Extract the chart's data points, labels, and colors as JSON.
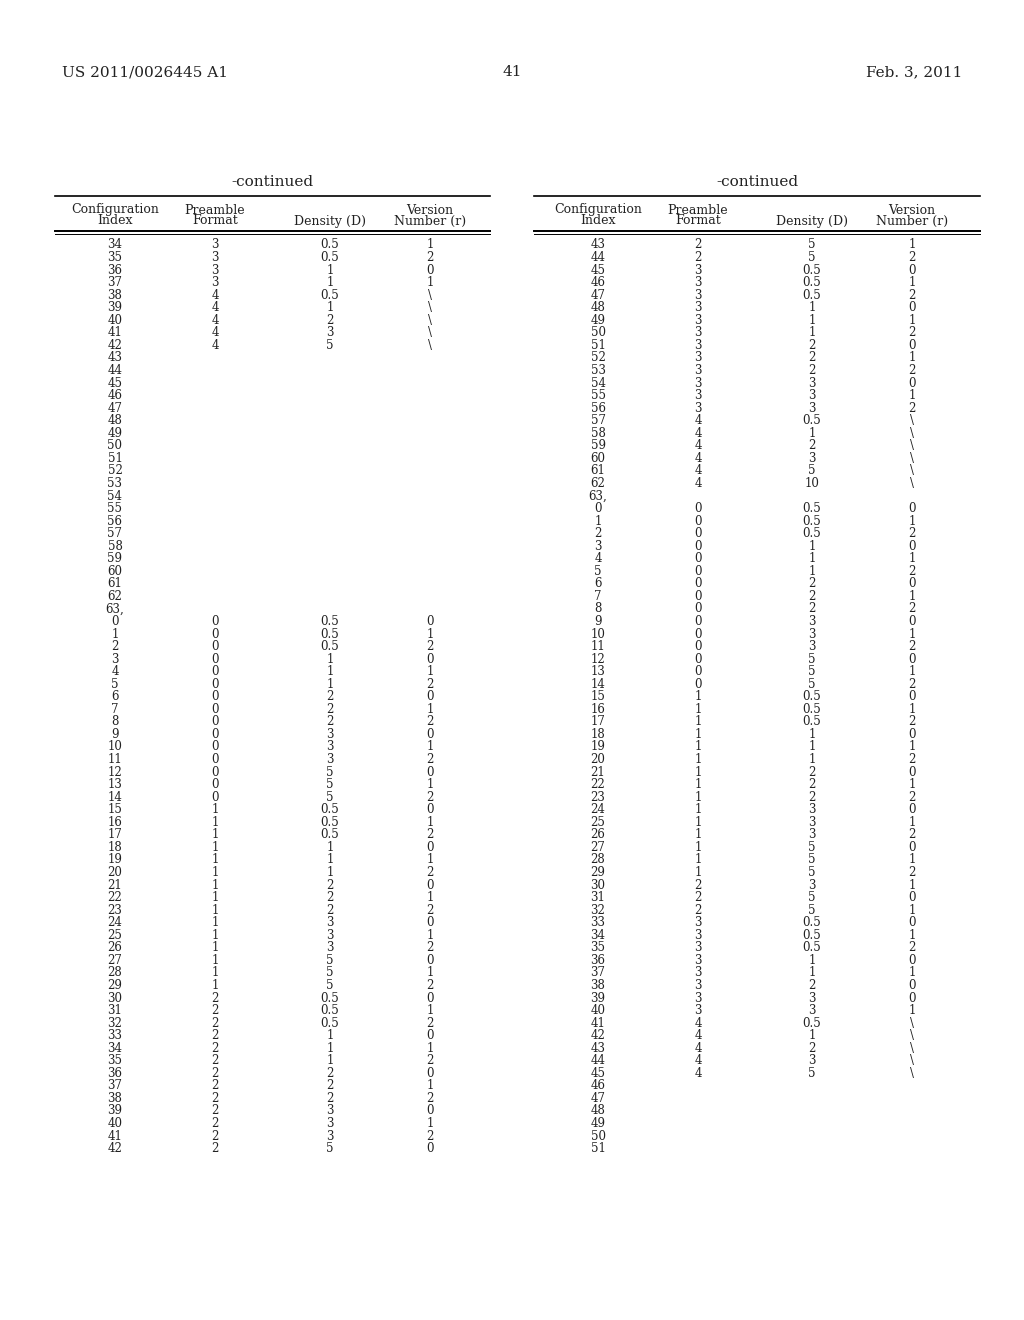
{
  "page_number": "41",
  "patent_number": "US 2011/0026445 A1",
  "date": "Feb. 3, 2011",
  "continued_label": "-continued",
  "col_headers_line1": [
    "Configuration",
    "Preamble",
    "",
    "Version"
  ],
  "col_headers_line2": [
    "Index",
    "Format",
    "Density (D)",
    "Number (r)"
  ],
  "left_table": [
    [
      "34",
      "3",
      "0.5",
      "1"
    ],
    [
      "35",
      "3",
      "0.5",
      "2"
    ],
    [
      "36",
      "3",
      "1",
      "0"
    ],
    [
      "37",
      "3",
      "1",
      "1"
    ],
    [
      "38",
      "4",
      "0.5",
      "\\"
    ],
    [
      "39",
      "4",
      "1",
      "\\"
    ],
    [
      "40",
      "4",
      "2",
      "\\"
    ],
    [
      "41",
      "4",
      "3",
      "\\"
    ],
    [
      "42",
      "4",
      "5",
      "\\"
    ],
    [
      "43",
      "",
      "",
      ""
    ],
    [
      "44",
      "",
      "",
      ""
    ],
    [
      "45",
      "",
      "",
      ""
    ],
    [
      "46",
      "",
      "",
      ""
    ],
    [
      "47",
      "",
      "",
      ""
    ],
    [
      "48",
      "",
      "",
      ""
    ],
    [
      "49",
      "",
      "",
      ""
    ],
    [
      "50",
      "",
      "",
      ""
    ],
    [
      "51",
      "",
      "",
      ""
    ],
    [
      "52",
      "",
      "",
      ""
    ],
    [
      "53",
      "",
      "",
      ""
    ],
    [
      "54",
      "",
      "",
      ""
    ],
    [
      "55",
      "",
      "",
      ""
    ],
    [
      "56",
      "",
      "",
      ""
    ],
    [
      "57",
      "",
      "",
      ""
    ],
    [
      "58",
      "",
      "",
      ""
    ],
    [
      "59",
      "",
      "",
      ""
    ],
    [
      "60",
      "",
      "",
      ""
    ],
    [
      "61",
      "",
      "",
      ""
    ],
    [
      "62",
      "",
      "",
      ""
    ],
    [
      "63,",
      "",
      "",
      ""
    ],
    [
      "0",
      "0",
      "0.5",
      "0"
    ],
    [
      "1",
      "0",
      "0.5",
      "1"
    ],
    [
      "2",
      "0",
      "0.5",
      "2"
    ],
    [
      "3",
      "0",
      "1",
      "0"
    ],
    [
      "4",
      "0",
      "1",
      "1"
    ],
    [
      "5",
      "0",
      "1",
      "2"
    ],
    [
      "6",
      "0",
      "2",
      "0"
    ],
    [
      "7",
      "0",
      "2",
      "1"
    ],
    [
      "8",
      "0",
      "2",
      "2"
    ],
    [
      "9",
      "0",
      "3",
      "0"
    ],
    [
      "10",
      "0",
      "3",
      "1"
    ],
    [
      "11",
      "0",
      "3",
      "2"
    ],
    [
      "12",
      "0",
      "5",
      "0"
    ],
    [
      "13",
      "0",
      "5",
      "1"
    ],
    [
      "14",
      "0",
      "5",
      "2"
    ],
    [
      "15",
      "1",
      "0.5",
      "0"
    ],
    [
      "16",
      "1",
      "0.5",
      "1"
    ],
    [
      "17",
      "1",
      "0.5",
      "2"
    ],
    [
      "18",
      "1",
      "1",
      "0"
    ],
    [
      "19",
      "1",
      "1",
      "1"
    ],
    [
      "20",
      "1",
      "1",
      "2"
    ],
    [
      "21",
      "1",
      "2",
      "0"
    ],
    [
      "22",
      "1",
      "2",
      "1"
    ],
    [
      "23",
      "1",
      "2",
      "2"
    ],
    [
      "24",
      "1",
      "3",
      "0"
    ],
    [
      "25",
      "1",
      "3",
      "1"
    ],
    [
      "26",
      "1",
      "3",
      "2"
    ],
    [
      "27",
      "1",
      "5",
      "0"
    ],
    [
      "28",
      "1",
      "5",
      "1"
    ],
    [
      "29",
      "1",
      "5",
      "2"
    ],
    [
      "30",
      "2",
      "0.5",
      "0"
    ],
    [
      "31",
      "2",
      "0.5",
      "1"
    ],
    [
      "32",
      "2",
      "0.5",
      "2"
    ],
    [
      "33",
      "2",
      "1",
      "0"
    ],
    [
      "34",
      "2",
      "1",
      "1"
    ],
    [
      "35",
      "2",
      "1",
      "2"
    ],
    [
      "36",
      "2",
      "2",
      "0"
    ],
    [
      "37",
      "2",
      "2",
      "1"
    ],
    [
      "38",
      "2",
      "2",
      "2"
    ],
    [
      "39",
      "2",
      "3",
      "0"
    ],
    [
      "40",
      "2",
      "3",
      "1"
    ],
    [
      "41",
      "2",
      "3",
      "2"
    ],
    [
      "42",
      "2",
      "5",
      "0"
    ]
  ],
  "right_table": [
    [
      "43",
      "2",
      "5",
      "1"
    ],
    [
      "44",
      "2",
      "5",
      "2"
    ],
    [
      "45",
      "3",
      "0.5",
      "0"
    ],
    [
      "46",
      "3",
      "0.5",
      "1"
    ],
    [
      "47",
      "3",
      "0.5",
      "2"
    ],
    [
      "48",
      "3",
      "1",
      "0"
    ],
    [
      "49",
      "3",
      "1",
      "1"
    ],
    [
      "50",
      "3",
      "1",
      "2"
    ],
    [
      "51",
      "3",
      "2",
      "0"
    ],
    [
      "52",
      "3",
      "2",
      "1"
    ],
    [
      "53",
      "3",
      "2",
      "2"
    ],
    [
      "54",
      "3",
      "3",
      "0"
    ],
    [
      "55",
      "3",
      "3",
      "1"
    ],
    [
      "56",
      "3",
      "3",
      "2"
    ],
    [
      "57",
      "4",
      "0.5",
      "\\"
    ],
    [
      "58",
      "4",
      "1",
      "\\"
    ],
    [
      "59",
      "4",
      "2",
      "\\"
    ],
    [
      "60",
      "4",
      "3",
      "\\"
    ],
    [
      "61",
      "4",
      "5",
      "\\"
    ],
    [
      "62",
      "4",
      "10",
      "\\"
    ],
    [
      "63,",
      "",
      "",
      ""
    ],
    [
      "0",
      "0",
      "0.5",
      "0"
    ],
    [
      "1",
      "0",
      "0.5",
      "1"
    ],
    [
      "2",
      "0",
      "0.5",
      "2"
    ],
    [
      "3",
      "0",
      "1",
      "0"
    ],
    [
      "4",
      "0",
      "1",
      "1"
    ],
    [
      "5",
      "0",
      "1",
      "2"
    ],
    [
      "6",
      "0",
      "2",
      "0"
    ],
    [
      "7",
      "0",
      "2",
      "1"
    ],
    [
      "8",
      "0",
      "2",
      "2"
    ],
    [
      "9",
      "0",
      "3",
      "0"
    ],
    [
      "10",
      "0",
      "3",
      "1"
    ],
    [
      "11",
      "0",
      "3",
      "2"
    ],
    [
      "12",
      "0",
      "5",
      "0"
    ],
    [
      "13",
      "0",
      "5",
      "1"
    ],
    [
      "14",
      "0",
      "5",
      "2"
    ],
    [
      "15",
      "1",
      "0.5",
      "0"
    ],
    [
      "16",
      "1",
      "0.5",
      "1"
    ],
    [
      "17",
      "1",
      "0.5",
      "2"
    ],
    [
      "18",
      "1",
      "1",
      "0"
    ],
    [
      "19",
      "1",
      "1",
      "1"
    ],
    [
      "20",
      "1",
      "1",
      "2"
    ],
    [
      "21",
      "1",
      "2",
      "0"
    ],
    [
      "22",
      "1",
      "2",
      "1"
    ],
    [
      "23",
      "1",
      "2",
      "2"
    ],
    [
      "24",
      "1",
      "3",
      "0"
    ],
    [
      "25",
      "1",
      "3",
      "1"
    ],
    [
      "26",
      "1",
      "3",
      "2"
    ],
    [
      "27",
      "1",
      "5",
      "0"
    ],
    [
      "28",
      "1",
      "5",
      "1"
    ],
    [
      "29",
      "1",
      "5",
      "2"
    ],
    [
      "30",
      "2",
      "3",
      "1"
    ],
    [
      "31",
      "2",
      "5",
      "0"
    ],
    [
      "32",
      "2",
      "5",
      "1"
    ],
    [
      "33",
      "3",
      "0.5",
      "0"
    ],
    [
      "34",
      "3",
      "0.5",
      "1"
    ],
    [
      "35",
      "3",
      "0.5",
      "2"
    ],
    [
      "36",
      "3",
      "1",
      "0"
    ],
    [
      "37",
      "3",
      "1",
      "1"
    ],
    [
      "38",
      "3",
      "2",
      "0"
    ],
    [
      "39",
      "3",
      "3",
      "0"
    ],
    [
      "40",
      "3",
      "3",
      "1"
    ],
    [
      "41",
      "4",
      "0.5",
      "\\"
    ],
    [
      "42",
      "4",
      "1",
      "\\"
    ],
    [
      "43",
      "4",
      "2",
      "\\"
    ],
    [
      "44",
      "4",
      "3",
      "\\"
    ],
    [
      "45",
      "4",
      "5",
      "\\"
    ],
    [
      "46",
      "",
      "",
      ""
    ],
    [
      "47",
      "",
      "",
      ""
    ],
    [
      "48",
      "",
      "",
      ""
    ],
    [
      "49",
      "",
      "",
      ""
    ],
    [
      "50",
      "",
      "",
      ""
    ],
    [
      "51",
      "",
      "",
      ""
    ]
  ],
  "text_color": "#222222",
  "bg_color": "#ffffff",
  "font_size_header": 9,
  "font_size_data": 8.5,
  "font_size_title": 11,
  "font_size_page": 11
}
